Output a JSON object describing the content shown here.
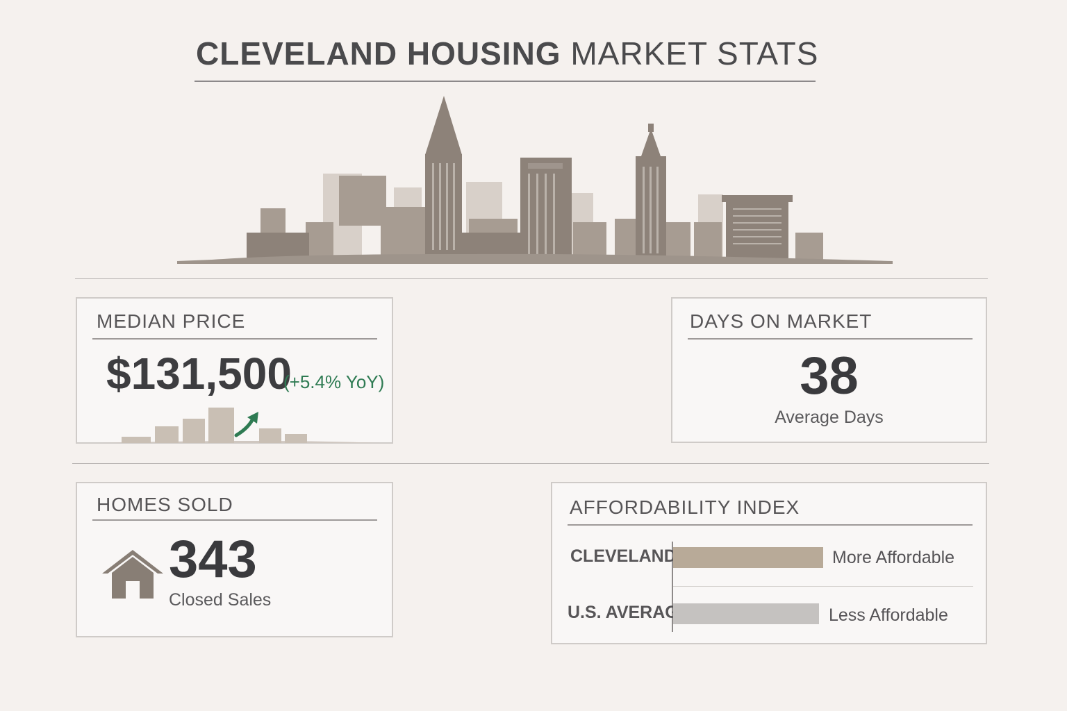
{
  "header": {
    "title_bold": "CLEVELAND HOUSING",
    "title_light": "MARKET STATS"
  },
  "median_price": {
    "title": "MEDIAN PRICE",
    "value": "$131,500",
    "change": "(+5.4% YoY)",
    "trend_icon": "trend-up-arrow-icon",
    "trend_color": "#2f7b53"
  },
  "days_on_market": {
    "title": "DAYS ON MARKET",
    "value": "38",
    "subtitle": "Average Days"
  },
  "homes_sold": {
    "title": "HOMES SOLD",
    "value": "343",
    "subtitle": "Closed Sales",
    "icon": "house-icon"
  },
  "affordability": {
    "title": "AFFORDABILITY INDEX",
    "rows": [
      {
        "label": "CLEVELAND",
        "note": "More Affordable",
        "color": "#b8aa98"
      },
      {
        "label": "U.S. AVERAGE",
        "note": "Less Affordable",
        "color": "#c5c2c0"
      }
    ]
  },
  "colors": {
    "background": "#f5f1ee",
    "skyline": "#8d8279",
    "accent_green": "#2f7b53"
  }
}
